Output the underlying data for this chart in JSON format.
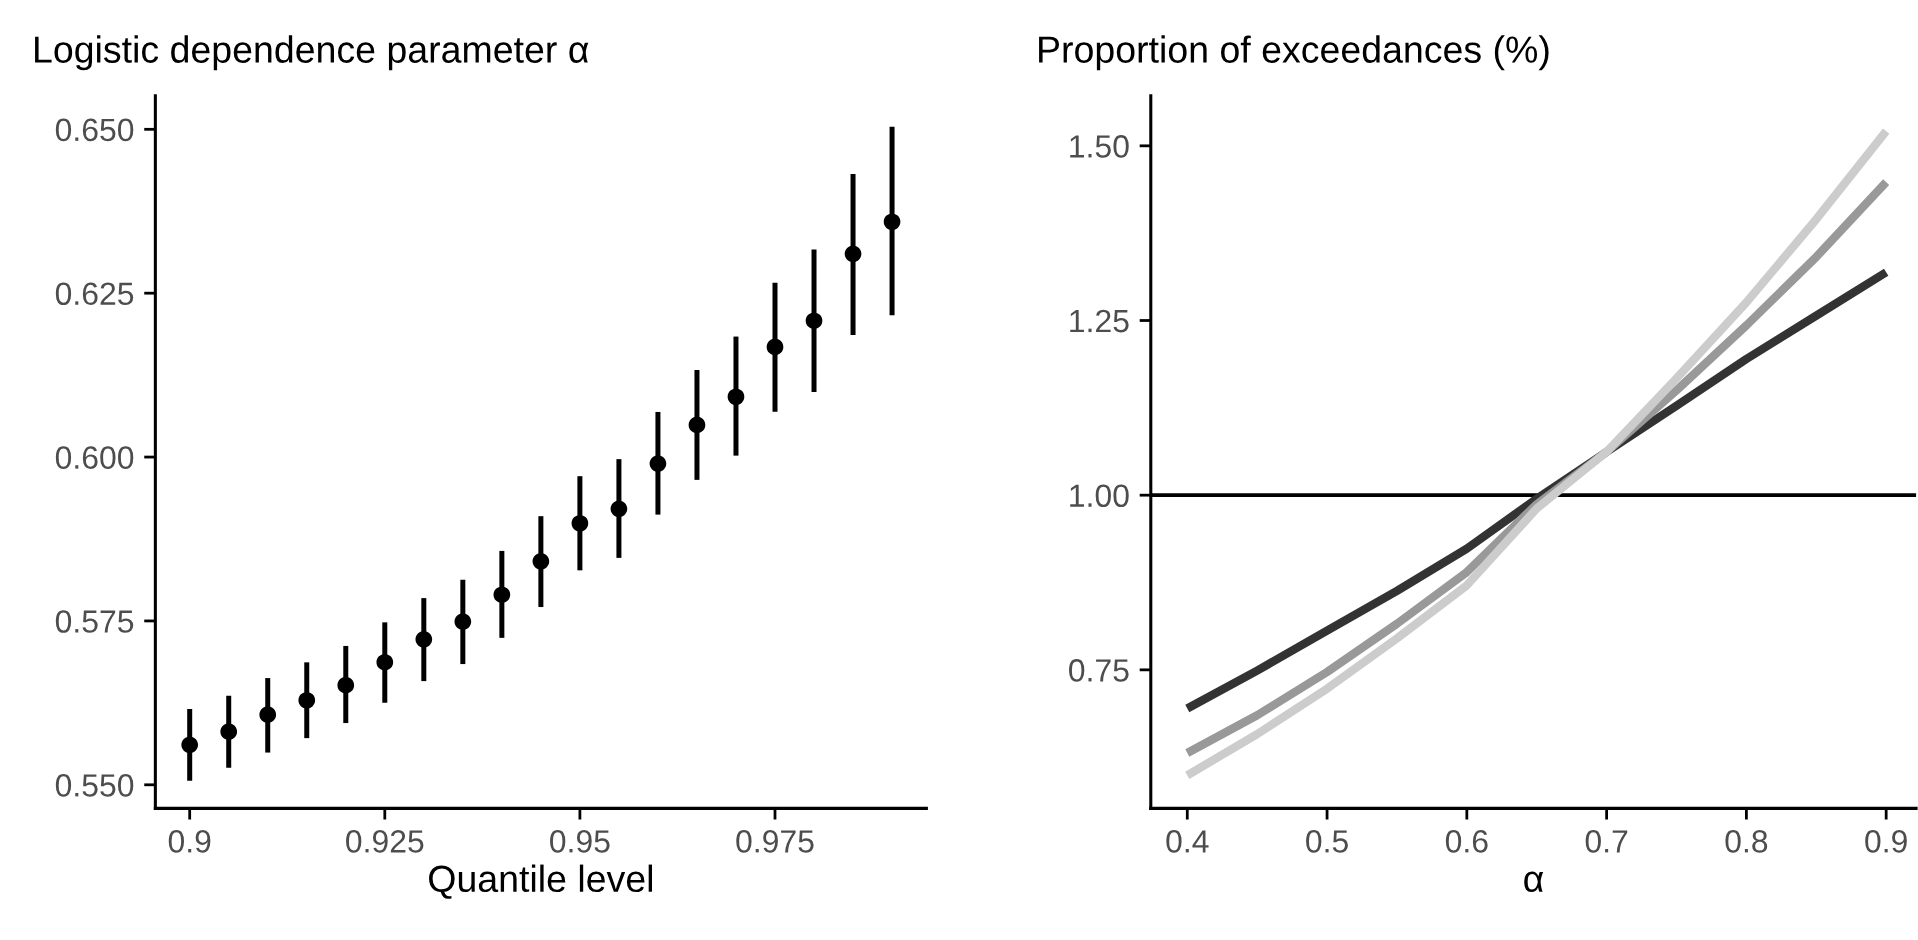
{
  "chart_data": [
    {
      "type": "scatter",
      "title": "Logistic dependence parameter α",
      "xlabel": "Quantile level",
      "x": [
        0.9,
        0.905,
        0.91,
        0.915,
        0.92,
        0.925,
        0.93,
        0.935,
        0.94,
        0.945,
        0.95,
        0.955,
        0.96,
        0.965,
        0.97,
        0.975,
        0.98,
        0.985,
        0.99
      ],
      "values": [
        0.5561,
        0.5581,
        0.5607,
        0.5629,
        0.5652,
        0.5687,
        0.5722,
        0.5749,
        0.579,
        0.5841,
        0.5899,
        0.5921,
        0.599,
        0.6049,
        0.6092,
        0.6168,
        0.6208,
        0.631,
        0.6359
      ],
      "errors": [
        [
          0.551,
          0.5612
        ],
        [
          0.553,
          0.5632
        ],
        [
          0.5553,
          0.5659
        ],
        [
          0.5575,
          0.5683
        ],
        [
          0.5598,
          0.5708
        ],
        [
          0.5629,
          0.5744
        ],
        [
          0.5662,
          0.5781
        ],
        [
          0.5688,
          0.5809
        ],
        [
          0.5728,
          0.5853
        ],
        [
          0.5775,
          0.5906
        ],
        [
          0.5831,
          0.5967
        ],
        [
          0.585,
          0.5993
        ],
        [
          0.5916,
          0.6065
        ],
        [
          0.5969,
          0.6129
        ],
        [
          0.6006,
          0.618
        ],
        [
          0.6073,
          0.6262
        ],
        [
          0.6103,
          0.6313
        ],
        [
          0.619,
          0.6428
        ],
        [
          0.622,
          0.65
        ]
      ],
      "color": "#000000",
      "marker": "circle",
      "grid": false,
      "legend": false,
      "xlim": [
        0.8956,
        0.9944
      ],
      "xticks": [
        0.9,
        0.925,
        0.95,
        0.975
      ],
      "ylim": [
        0.5464,
        0.6551
      ],
      "yticks": [
        {
          "value": 0.55,
          "label": "0.550"
        },
        {
          "value": 0.575,
          "label": "0.575"
        },
        {
          "value": 0.6,
          "label": "0.600"
        },
        {
          "value": 0.625,
          "label": "0.625"
        },
        {
          "value": 0.65,
          "label": "0.650"
        }
      ]
    },
    {
      "type": "line",
      "title": "Proportion of exceedances (%)",
      "xlabel": "α",
      "grid": false,
      "legend": false,
      "marker": "none",
      "line_style": "solid",
      "x": [
        0.4,
        0.45,
        0.5,
        0.55,
        0.6,
        0.65,
        0.7,
        0.75,
        0.8,
        0.85,
        0.9
      ],
      "series": [
        {
          "color": "#333333",
          "values": [
            0.6947,
            0.749,
            0.806,
            0.863,
            0.9235,
            0.995,
            1.062,
            1.128,
            1.195,
            1.257,
            1.319
          ]
        },
        {
          "color": "#999999",
          "values": [
            0.631,
            0.685,
            0.747,
            0.816,
            0.89,
            0.987,
            1.062,
            1.15,
            1.243,
            1.341,
            1.448
          ]
        },
        {
          "color": "#cccccc",
          "values": [
            0.599,
            0.658,
            0.723,
            0.795,
            0.871,
            0.981,
            1.062,
            1.167,
            1.276,
            1.395,
            1.521
          ]
        }
      ],
      "ref_lines": [
        {
          "axis": "y",
          "value": 1.0,
          "label": null,
          "color": "#000000"
        }
      ],
      "xlim": [
        0.3739,
        0.9214
      ],
      "xticks": [
        0.4,
        0.5,
        0.6,
        0.7,
        0.8,
        0.9
      ],
      "ylim": [
        0.5517,
        1.5715
      ],
      "yticks": [
        {
          "value": 0.75,
          "label": "0.75"
        },
        {
          "value": 1.0,
          "label": "1.00"
        },
        {
          "value": 1.25,
          "label": "1.25"
        },
        {
          "value": 1.5,
          "label": "1.50"
        }
      ]
    }
  ]
}
